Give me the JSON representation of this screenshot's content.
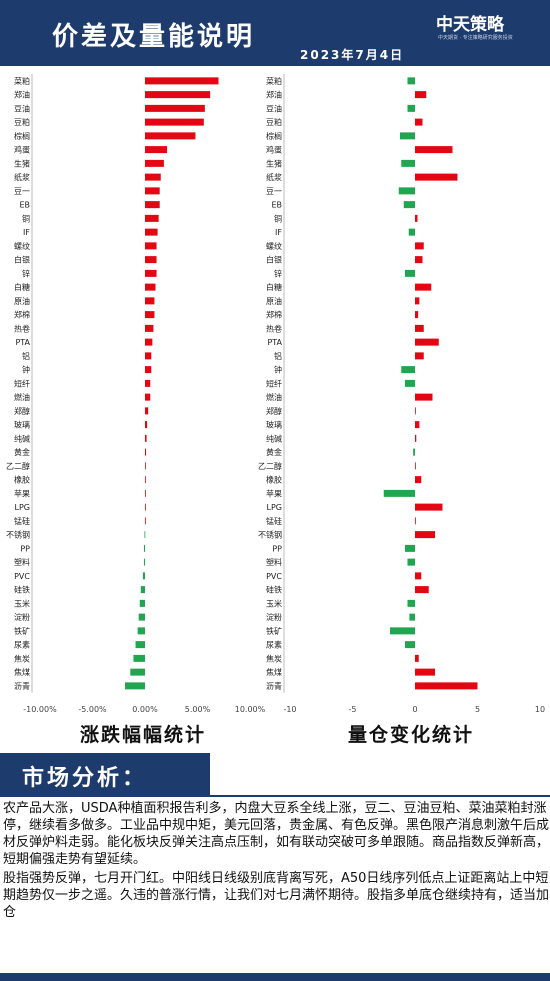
{
  "header": {
    "title": "价差及量能说明",
    "date": "2023年7月4日",
    "logo": "中天策略",
    "logo_sub": "中天期货 · 专注策略研究服务投资"
  },
  "chart_titles": {
    "left": "涨跌幅幅统计",
    "right": "量仓变化统计"
  },
  "section": {
    "title": "市场分析："
  },
  "analysis": {
    "p1": "农产品大涨，USDA种植面积报告利多，内盘大豆系全线上涨，豆二、豆油豆粕、菜油菜粕封涨停，继续看多做多。工业品中规中矩，美元回落，贵金属、有色反弹。黑色限产消息刺激午后成材反弹炉料走弱。能化板块反弹关注高点压制，如有联动突破可多单跟随。商品指数反弹新高，短期偏强走势有望延续。",
    "p2": "股指强势反弹，七月开门红。中阳线日线级别底背离写死，A50日线序列低点上证距离站上中短期趋势仅一步之遥。久违的普涨行情，让我们对七月满怀期待。股指多单底仓继续持有，适当加仓"
  },
  "colors": {
    "up": "#e30613",
    "down": "#22a550",
    "header": "#1e3b6e"
  },
  "chart_data": [
    {
      "type": "bar",
      "orientation": "horizontal",
      "categories": [
        "菜粕",
        "郑油",
        "豆油",
        "豆粕",
        "棕榈",
        "鸡蛋",
        "生猪",
        "纸浆",
        "豆一",
        "EB",
        "铜",
        "IF",
        "螺纹",
        "白银",
        "锌",
        "白糖",
        "原油",
        "郑棉",
        "热卷",
        "PTA",
        "铝",
        "钟",
        "短纤",
        "燃油",
        "郑醇",
        "玻璃",
        "纯碱",
        "黄金",
        "乙二醇",
        "橡胶",
        "苹果",
        "LPG",
        "锰硅",
        "不锈钢",
        "PP",
        "塑料",
        "PVC",
        "硅铁",
        "玉米",
        "淀粉",
        "铁矿",
        "尿素",
        "焦炭",
        "焦煤",
        "沥青"
      ],
      "values": [
        7.0,
        6.2,
        5.7,
        5.6,
        4.8,
        2.1,
        1.8,
        1.5,
        1.4,
        1.4,
        1.3,
        1.2,
        1.1,
        1.1,
        1.1,
        1.0,
        0.9,
        0.9,
        0.8,
        0.7,
        0.6,
        0.6,
        0.5,
        0.5,
        0.3,
        0.2,
        0.15,
        0.1,
        0.05,
        0.05,
        0.02,
        0.0,
        0.0,
        -0.05,
        -0.1,
        -0.1,
        -0.2,
        -0.4,
        -0.5,
        -0.6,
        -0.7,
        -0.9,
        -1.1,
        -1.4,
        -1.9
      ],
      "xlim": [
        -10,
        10
      ],
      "ticks": [
        "-10.00%",
        "-5.00%",
        "0.00%",
        "5.00%",
        "10.00%"
      ]
    },
    {
      "type": "bar",
      "orientation": "horizontal",
      "categories": [
        "菜粕",
        "郑油",
        "豆油",
        "豆粕",
        "棕榈",
        "鸡蛋",
        "生猪",
        "纸浆",
        "豆一",
        "EB",
        "铜",
        "IF",
        "螺纹",
        "白银",
        "锌",
        "白糖",
        "原油",
        "郑棉",
        "热卷",
        "PTA",
        "铝",
        "钟",
        "短纤",
        "燃油",
        "郑醇",
        "玻璃",
        "纯碱",
        "黄金",
        "乙二醇",
        "橡胶",
        "苹果",
        "LPG",
        "锰硅",
        "不锈钢",
        "PP",
        "塑料",
        "PVC",
        "硅铁",
        "玉米",
        "淀粉",
        "铁矿",
        "尿素",
        "焦炭",
        "焦煤",
        "沥青"
      ],
      "values": [
        -0.6,
        0.9,
        -0.6,
        0.6,
        -1.2,
        3.0,
        -1.1,
        3.4,
        -1.3,
        -0.9,
        0.2,
        -0.5,
        0.7,
        0.6,
        -0.8,
        1.3,
        0.35,
        0.25,
        0.7,
        1.9,
        0.7,
        -1.1,
        -0.8,
        1.4,
        0.05,
        0.35,
        0.1,
        -0.15,
        0.05,
        0.5,
        -2.5,
        2.2,
        0.0,
        1.6,
        -0.8,
        -0.6,
        0.5,
        1.1,
        -0.6,
        -0.45,
        -2.0,
        -0.8,
        0.3,
        1.6,
        5.0
      ],
      "xlim": [
        -10,
        10
      ],
      "ticks": [
        "-10",
        "-5",
        "0",
        "5",
        "10"
      ]
    }
  ]
}
